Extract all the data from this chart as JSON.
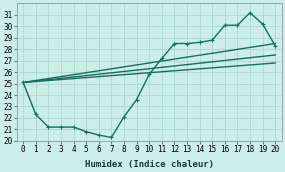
{
  "xlabel": "Humidex (Indice chaleur)",
  "ylabel": "",
  "bg_color": "#cceee8",
  "grid_color": "#aad8d0",
  "line_color": "#1a6b60",
  "xlim": [
    -0.5,
    20.5
  ],
  "ylim": [
    20,
    32
  ],
  "xticks": [
    0,
    1,
    2,
    3,
    4,
    5,
    6,
    7,
    8,
    9,
    10,
    11,
    12,
    13,
    14,
    15,
    16,
    17,
    18,
    19,
    20
  ],
  "yticks": [
    20,
    21,
    22,
    23,
    24,
    25,
    26,
    27,
    28,
    29,
    30,
    31
  ],
  "lines": [
    {
      "x": [
        0,
        1,
        2,
        3,
        4,
        5,
        6,
        7,
        8,
        9,
        10,
        11,
        12,
        13,
        14,
        15,
        16,
        17,
        18,
        19,
        20
      ],
      "y": [
        25.1,
        22.3,
        21.2,
        21.2,
        21.2,
        20.8,
        20.5,
        20.3,
        22.1,
        23.6,
        25.8,
        27.2,
        28.5,
        28.5,
        28.6,
        28.8,
        30.1,
        30.1,
        31.2,
        30.2,
        28.3
      ],
      "marker": "+",
      "lw": 1.0
    },
    {
      "x": [
        0,
        20
      ],
      "y": [
        25.1,
        28.5
      ],
      "marker": null,
      "lw": 1.0
    },
    {
      "x": [
        0,
        20
      ],
      "y": [
        25.1,
        27.5
      ],
      "marker": null,
      "lw": 1.0
    },
    {
      "x": [
        0,
        20
      ],
      "y": [
        25.1,
        26.8
      ],
      "marker": null,
      "lw": 1.0
    }
  ]
}
